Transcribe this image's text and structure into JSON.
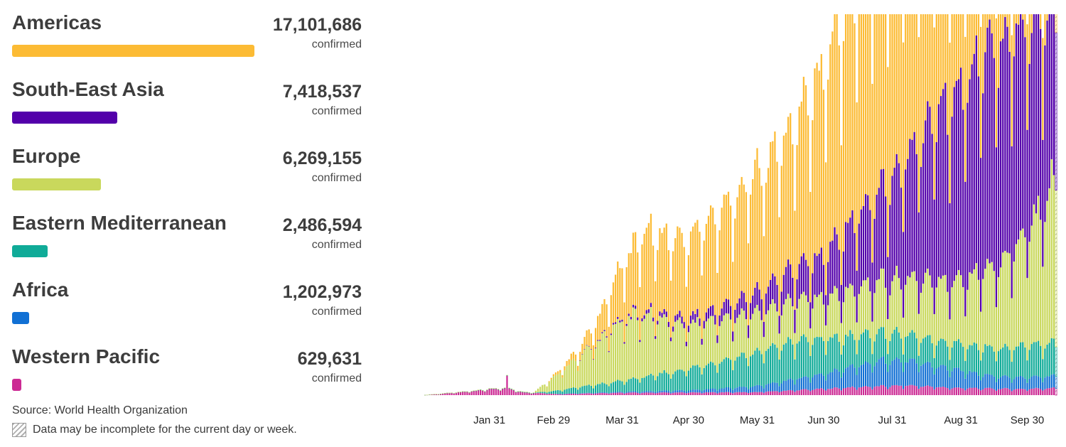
{
  "legend": [
    {
      "name": "Americas",
      "count": "17,101,686",
      "unit": "confirmed",
      "color": "#fcbb34",
      "bar_fraction": 1.0
    },
    {
      "name": "South-East Asia",
      "count": "7,418,537",
      "unit": "confirmed",
      "color": "#5300aa",
      "bar_fraction": 0.434
    },
    {
      "name": "Europe",
      "count": "6,269,155",
      "unit": "confirmed",
      "color": "#c9d85c",
      "bar_fraction": 0.367
    },
    {
      "name": "Eastern Mediterranean",
      "count": "2,486,594",
      "unit": "confirmed",
      "color": "#10ab98",
      "bar_fraction": 0.146
    },
    {
      "name": "Africa",
      "count": "1,202,973",
      "unit": "confirmed",
      "color": "#1170d4",
      "bar_fraction": 0.07
    },
    {
      "name": "Western Pacific",
      "count": "629,631",
      "unit": "confirmed",
      "color": "#cc2a94",
      "bar_fraction": 0.037
    }
  ],
  "source": "Source: World Health Organization",
  "note": "Data may be incomplete for the current day or week.",
  "chart_data": {
    "type": "bar",
    "stacked": true,
    "title": "",
    "xlabel": "",
    "ylabel": "",
    "x_tick_labels": [
      "Jan 31",
      "Feb 29",
      "Mar 31",
      "Apr 30",
      "May 31",
      "Jun 30",
      "Jul 31",
      "Aug 31",
      "Sep 30"
    ],
    "x_tick_day_index": [
      30,
      59,
      90,
      120,
      151,
      181,
      212,
      243,
      273
    ],
    "day_count": 287,
    "first_day": "Jan 1",
    "grid": false,
    "legend_position": "left",
    "stack_order": [
      "Western Pacific",
      "Africa",
      "Eastern Mediterranean",
      "Europe",
      "South-East Asia",
      "Americas"
    ],
    "ylim": [
      0,
      160000
    ],
    "series_daily_new_cases_keypoints": {
      "note": "approximate daily new confirmed cases (data units); daily bars interpolated between keypoints with weekly reporting cycle",
      "Western Pacific": [
        [
          0,
          0
        ],
        [
          20,
          1500
        ],
        [
          30,
          2500
        ],
        [
          38,
          2800
        ],
        [
          45,
          1200
        ],
        [
          60,
          500
        ],
        [
          90,
          1000
        ],
        [
          150,
          1200
        ],
        [
          200,
          3500
        ],
        [
          220,
          4000
        ],
        [
          240,
          3000
        ],
        [
          270,
          2500
        ],
        [
          287,
          3000
        ]
      ],
      "Africa": [
        [
          0,
          0
        ],
        [
          60,
          0
        ],
        [
          90,
          400
        ],
        [
          120,
          900
        ],
        [
          150,
          2500
        ],
        [
          180,
          6000
        ],
        [
          210,
          11000
        ],
        [
          230,
          9000
        ],
        [
          260,
          5000
        ],
        [
          287,
          5000
        ]
      ],
      "Eastern Mediterranean": [
        [
          0,
          0
        ],
        [
          50,
          50
        ],
        [
          70,
          2500
        ],
        [
          90,
          4500
        ],
        [
          120,
          9000
        ],
        [
          150,
          14000
        ],
        [
          170,
          16000
        ],
        [
          200,
          12000
        ],
        [
          230,
          10000
        ],
        [
          260,
          12000
        ],
        [
          287,
          14000
        ]
      ],
      "Europe": [
        [
          0,
          0
        ],
        [
          50,
          200
        ],
        [
          70,
          12000
        ],
        [
          90,
          25000
        ],
        [
          100,
          26000
        ],
        [
          120,
          18000
        ],
        [
          150,
          16000
        ],
        [
          180,
          17000
        ],
        [
          210,
          22000
        ],
        [
          240,
          26000
        ],
        [
          260,
          35000
        ],
        [
          275,
          50000
        ],
        [
          287,
          70000
        ]
      ],
      "South-East Asia": [
        [
          0,
          0
        ],
        [
          70,
          0
        ],
        [
          90,
          800
        ],
        [
          110,
          2000
        ],
        [
          130,
          4000
        ],
        [
          150,
          8000
        ],
        [
          180,
          17000
        ],
        [
          210,
          40000
        ],
        [
          230,
          65000
        ],
        [
          250,
          88000
        ],
        [
          265,
          92000
        ],
        [
          280,
          80000
        ],
        [
          287,
          70000
        ]
      ],
      "Americas": [
        [
          0,
          0
        ],
        [
          55,
          0
        ],
        [
          70,
          3000
        ],
        [
          80,
          10000
        ],
        [
          90,
          23000
        ],
        [
          100,
          33000
        ],
        [
          120,
          34000
        ],
        [
          150,
          48000
        ],
        [
          170,
          62000
        ],
        [
          185,
          85000
        ],
        [
          200,
          105000
        ],
        [
          215,
          108000
        ],
        [
          235,
          95000
        ],
        [
          250,
          83000
        ],
        [
          260,
          75000
        ],
        [
          275,
          65000
        ],
        [
          287,
          62000
        ]
      ]
    }
  }
}
